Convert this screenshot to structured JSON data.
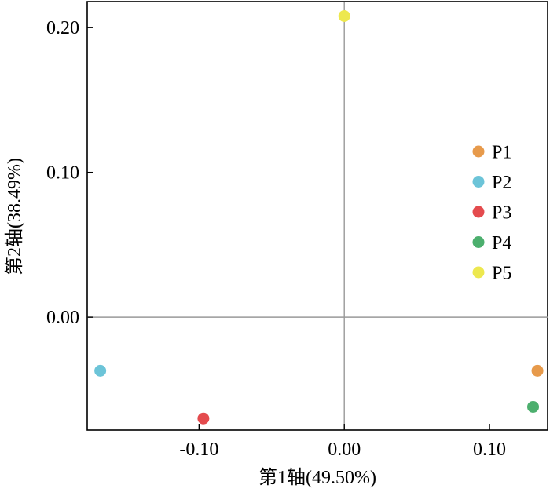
{
  "chart_data": {
    "type": "scatter",
    "title": "",
    "xlabel": "第1轴(49.50%)",
    "ylabel": "第2轴(38.49%)",
    "xlim": [
      -0.177,
      0.14
    ],
    "ylim": [
      -0.078,
      0.218
    ],
    "x_ticks": [
      -0.1,
      0.0,
      0.1
    ],
    "x_tick_labels": [
      "-0.10",
      "0.00",
      "0.10"
    ],
    "y_ticks": [
      0.0,
      0.1,
      0.2
    ],
    "y_tick_labels": [
      "0.00",
      "0.10",
      "0.20"
    ],
    "grid": false,
    "zero_lines": true,
    "legend_position": "right",
    "series": [
      {
        "name": "P1",
        "color": "#E79A4B",
        "x": 0.133,
        "y": -0.037
      },
      {
        "name": "P2",
        "color": "#6CC4D8",
        "x": -0.168,
        "y": -0.037
      },
      {
        "name": "P3",
        "color": "#E44B4E",
        "x": -0.097,
        "y": -0.07
      },
      {
        "name": "P4",
        "color": "#4CAF6E",
        "x": 0.13,
        "y": -0.062
      },
      {
        "name": "P5",
        "color": "#EDE84F",
        "x": 0.0,
        "y": 0.208
      }
    ]
  }
}
